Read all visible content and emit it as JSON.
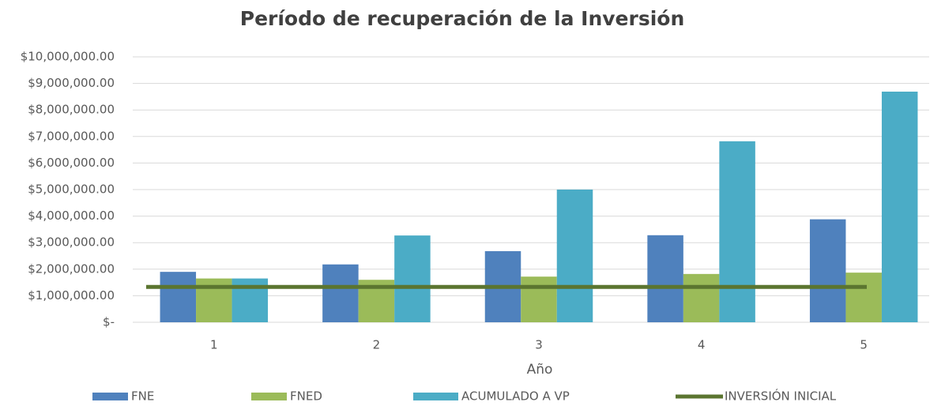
{
  "chart_data": {
    "type": "bar",
    "title": "Período de recuperación de la Inversión",
    "x_label": "Año",
    "categories": [
      "1",
      "2",
      "3",
      "4",
      "5"
    ],
    "series": [
      {
        "name": "FNE",
        "color": "#4f81bd",
        "values": [
          1900000,
          2180000,
          2680000,
          3280000,
          3880000
        ]
      },
      {
        "name": "FNED",
        "color": "#9bbb59",
        "values": [
          1650000,
          1600000,
          1720000,
          1820000,
          1870000
        ]
      },
      {
        "name": "ACUMULADO A VP",
        "color": "#4bacc6",
        "values": [
          1650000,
          3270000,
          5000000,
          6820000,
          8690000
        ]
      },
      {
        "name": "INVERSIÓN INICIAL",
        "color": "#5b7530",
        "type": "line",
        "values": [
          1330000,
          1330000,
          1330000,
          1330000,
          1330000
        ]
      }
    ],
    "ylim": [
      0,
      10000000
    ],
    "yticks": [
      {
        "value": 0,
        "label": "$-"
      },
      {
        "value": 1000000,
        "label": "$1,000,000.00"
      },
      {
        "value": 2000000,
        "label": "$2,000,000.00"
      },
      {
        "value": 3000000,
        "label": "$3,000,000.00"
      },
      {
        "value": 4000000,
        "label": "$4,000,000.00"
      },
      {
        "value": 5000000,
        "label": "$5,000,000.00"
      },
      {
        "value": 6000000,
        "label": "$6,000,000.00"
      },
      {
        "value": 7000000,
        "label": "$7,000,000.00"
      },
      {
        "value": 8000000,
        "label": "$8,000,000.00"
      },
      {
        "value": 9000000,
        "label": "$9,000,000.00"
      },
      {
        "value": 10000000,
        "label": "$10,000,000.00"
      }
    ],
    "grid": true,
    "legend": "bottom"
  }
}
